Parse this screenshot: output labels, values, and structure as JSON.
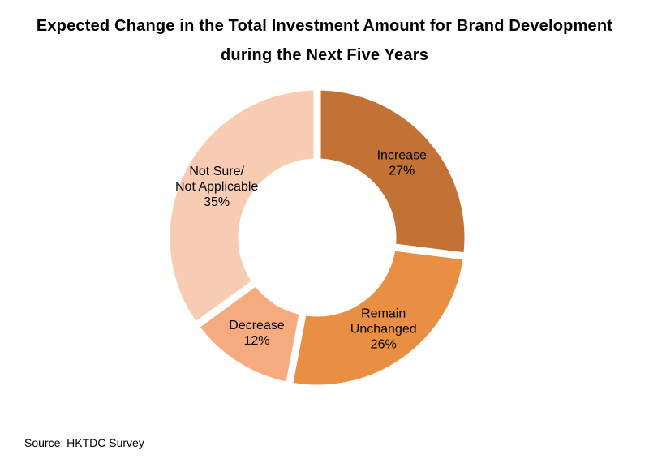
{
  "chart_data": {
    "type": "pie",
    "style": "donut",
    "title_line1": "Expected Change in the Total Investment Amount for Brand Development",
    "title_line2": "during the Next Five Years",
    "slices": [
      {
        "label": [
          "Increase"
        ],
        "value": 27,
        "value_label": "27%",
        "color": "#C27234"
      },
      {
        "label": [
          "Remain",
          "Unchanged"
        ],
        "value": 26,
        "value_label": "26%",
        "color": "#E98F43"
      },
      {
        "label": [
          "Decrease"
        ],
        "value": 12,
        "value_label": "12%",
        "color": "#F5AB7D"
      },
      {
        "label": [
          "Not Sure/",
          "Not Applicable"
        ],
        "value": 35,
        "value_label": "35%",
        "color": "#F8CCB3"
      }
    ],
    "start_angle": "12 o'clock",
    "direction": "clockwise",
    "source": "Source: HKTDC Survey"
  }
}
